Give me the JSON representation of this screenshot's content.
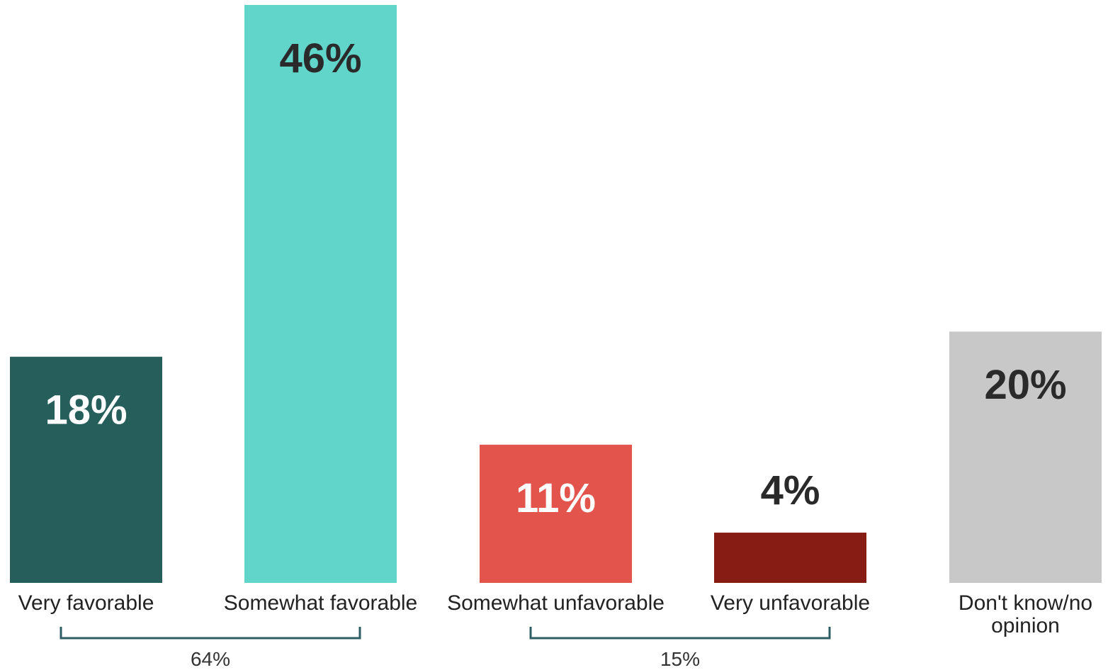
{
  "chart_data": {
    "type": "bar",
    "categories": [
      "Very favorable",
      "Somewhat favorable",
      "Somewhat unfavorable",
      "Very unfavorable",
      "Don't know/no opinion"
    ],
    "category_lines": [
      [
        "Very favorable"
      ],
      [
        "Somewhat favorable"
      ],
      [
        "Somewhat unfavorable"
      ],
      [
        "Very unfavorable"
      ],
      [
        "Don't know/no",
        "opinion"
      ]
    ],
    "values": [
      18,
      46,
      11,
      4,
      20
    ],
    "data_labels": [
      "18%",
      "46%",
      "11%",
      "4%",
      "20%"
    ],
    "colors": [
      "#265e5c",
      "#62d5cb",
      "#e2544c",
      "#871c15",
      "#c8c8c8"
    ],
    "label_colors": [
      "#ffffff",
      "#2a2a2a",
      "#ffffff",
      "#2a2a2a",
      "#2a2a2a"
    ],
    "groups": [
      {
        "label": "64%",
        "from": 0,
        "to": 1
      },
      {
        "label": "15%",
        "from": 2,
        "to": 3
      }
    ],
    "group_bracket_color": "#2f5e66",
    "ylim": [
      0,
      46
    ],
    "grid": false,
    "legend": false,
    "title": "",
    "xlabel": "",
    "ylabel": ""
  }
}
